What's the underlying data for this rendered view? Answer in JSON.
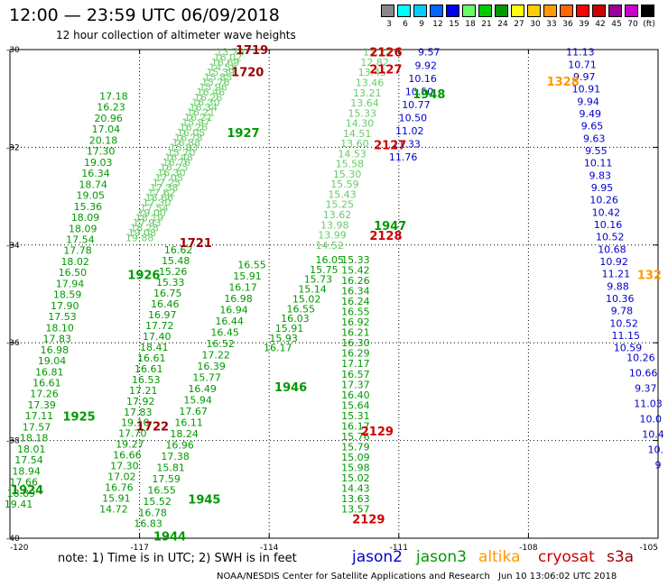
{
  "header": {
    "title": "12:00 — 23:59 UTC 06/09/2018",
    "subtitle": "12 hour collection of altimeter wave heights"
  },
  "colorbar": {
    "labels": [
      "3",
      "6",
      "9",
      "12",
      "15",
      "18",
      "21",
      "24",
      "27",
      "30",
      "33",
      "36",
      "39",
      "42",
      "45",
      "70",
      "(ft)"
    ],
    "colors": [
      "#888888",
      "#00ffff",
      "#00ccff",
      "#0066ff",
      "#0000ee",
      "#66ff66",
      "#00cc00",
      "#009900",
      "#ffff00",
      "#ffcc00",
      "#ff9900",
      "#ff6600",
      "#ff0000",
      "#cc0000",
      "#990099",
      "#cc00cc",
      "#000000"
    ]
  },
  "axes": {
    "lat_labels": [
      "-30",
      "-32",
      "-34",
      "-36",
      "-38",
      "-40"
    ],
    "lon_labels": [
      "-120",
      "-117",
      "-114",
      "-111",
      "-108",
      "-105"
    ]
  },
  "colors": {
    "jason2": "#0000cc",
    "jason3": "#009900",
    "jason3_light": "#66cc66",
    "altika": "#ff9900",
    "cryosat": "#cc0000",
    "s3a": "#990000",
    "green_mid": "#33aa33",
    "yellow": "#ffff44"
  },
  "footer": {
    "note": "note:  1) Time is in UTC;  2) SWH is in feet",
    "satellites": [
      "jason2",
      "jason3",
      "altika",
      "cryosat",
      "s3a"
    ],
    "credit": "NOAA/NESDIS Center for Satellite Applications and Research",
    "date": "Jun 10 13:06:02 UTC 2018"
  },
  "tracks": [
    {
      "sat": "jason3_light",
      "lon0": -114.9,
      "lat0": -30.05,
      "lon1": -117.0,
      "lat1": -33.85,
      "values": [
        "13.78",
        "16.02",
        "16.69",
        "14.55",
        "15.39",
        "15.85",
        "15.76",
        "15.96",
        "16.46",
        "16.26",
        "16.30",
        "16.34",
        "16.21",
        "16.21",
        "15.97",
        "16.26",
        "16.05",
        "16.78",
        "16.88",
        "15.83",
        "15.70",
        "16.48",
        "16.76",
        "16.25",
        "16.30",
        "17.05",
        "17.25",
        "17.38",
        "17.62",
        "18.66",
        "17.30",
        "17.54",
        "19.00",
        "18.19",
        "17.93",
        "18.28",
        "19.08",
        "19.88"
      ]
    },
    {
      "sat": "jason3",
      "lon0": -117.6,
      "lat0": -30.95,
      "lon1": -119.8,
      "lat1": -39.3,
      "values": [
        "17.18",
        "16.23",
        "20.96",
        "17.04",
        "20.18",
        "17.30",
        "19.03",
        "16.34",
        "18.74",
        "19.05",
        "15.36",
        "18.09",
        "18.09",
        "17.54",
        "17.78",
        "18.02",
        "16.50",
        "17.94",
        "18.59",
        "17.90",
        "17.53",
        "18.10",
        "17.83",
        "16.98",
        "19.04",
        "16.81",
        "16.61",
        "17.26",
        "17.39",
        "17.11",
        "17.57",
        "18.18",
        "18.01",
        "17.54",
        "18.94",
        "17.66",
        "18.89",
        "19.41"
      ]
    },
    {
      "sat": "jason3",
      "lon0": -116.1,
      "lat0": -34.1,
      "lon1": -117.6,
      "lat1": -39.4,
      "values": [
        "16.62",
        "15.48",
        "15.26",
        "15.33",
        "16.75",
        "16.46",
        "16.97",
        "17.72",
        "17.40",
        "18.41",
        "16.61",
        "16.61",
        "16.53",
        "17.21",
        "17.92",
        "17.83",
        "19.10",
        "17.70",
        "19.27",
        "16.66",
        "17.30",
        "17.02",
        "16.76",
        "15.91",
        "14.72"
      ]
    },
    {
      "sat": "jason3",
      "lon0": -114.4,
      "lat0": -34.4,
      "lon1": -116.8,
      "lat1": -39.7,
      "values": [
        "16.55",
        "15.91",
        "16.17",
        "16.98",
        "16.94",
        "16.44",
        "16.45",
        "16.52",
        "17.22",
        "16.39",
        "15.77",
        "16.49",
        "15.94",
        "17.67",
        "16.11",
        "18.24",
        "16.96",
        "17.38",
        "15.81",
        "17.59",
        "16.55",
        "15.52",
        "16.78",
        "16.83"
      ]
    },
    {
      "sat": "jason3",
      "lon0": -112.6,
      "lat0": -34.3,
      "lon1": -113.8,
      "lat1": -36.1,
      "values": [
        "16.05",
        "15.75",
        "15.73",
        "15.14",
        "15.02",
        "16.55",
        "16.03",
        "15.91",
        "15.93",
        "16.17"
      ]
    },
    {
      "sat": "jason3",
      "lon0": -112.0,
      "lat0": -34.3,
      "lon1": -112.0,
      "lat1": -39.4,
      "values": [
        "15.33",
        "15.42",
        "16.26",
        "16.34",
        "16.24",
        "16.55",
        "16.92",
        "16.21",
        "16.30",
        "16.29",
        "17.17",
        "16.57",
        "17.37",
        "16.40",
        "15.64",
        "15.31",
        "16.17",
        "15.76",
        "15.79",
        "15.09",
        "15.98",
        "15.02",
        "14.43",
        "13.63",
        "13.57"
      ]
    },
    {
      "sat": "jason3_light",
      "lon0": -111.5,
      "lat0": -30.05,
      "lon1": -112.6,
      "lat1": -34.0,
      "values": [
        "13.22",
        "12.82",
        "13.45",
        "13.46",
        "13.21",
        "13.64",
        "15.33",
        "14.30",
        "14.51",
        "13.60",
        "14.53",
        "15.58",
        "15.30",
        "15.59",
        "15.43",
        "15.25",
        "13.62",
        "13.98",
        "13.99",
        "14.52"
      ]
    },
    {
      "sat": "jason2",
      "lon0": -110.3,
      "lat0": -30.05,
      "lon1": -110.9,
      "lat1": -32.2,
      "values": [
        "9.57",
        "9.92",
        "10.16",
        "10.50",
        "10.77",
        "10.50",
        "11.02",
        "11.33",
        "11.76"
      ]
    },
    {
      "sat": "jason2",
      "lon0": -106.8,
      "lat0": -30.05,
      "lon1": -105.7,
      "lat1": -36.1,
      "values": [
        "11.13",
        "10.71",
        "9.97",
        "10.91",
        "9.94",
        "9.49",
        "9.65",
        "9.63",
        "9.55",
        "10.11",
        "9.83",
        "9.95",
        "10.26",
        "10.42",
        "10.16",
        "10.52",
        "10.68",
        "10.92",
        "11.21",
        "9.88",
        "10.36",
        "9.78",
        "10.52",
        "11.15",
        "10.59"
      ]
    },
    {
      "sat": "jason2",
      "lon0": -105.4,
      "lat0": -36.3,
      "lon1": -105.0,
      "lat1": -38.5,
      "values": [
        "10.26",
        "10.66",
        "9.37",
        "11.03",
        "10.0",
        "10.4",
        "10.",
        "9"
      ]
    }
  ],
  "time_labels": [
    {
      "sat": "s3a",
      "lon": -114.4,
      "lat": -30.0,
      "text": "1719"
    },
    {
      "sat": "s3a",
      "lon": -114.5,
      "lat": -30.45,
      "text": "1720"
    },
    {
      "sat": "jason3",
      "lon": -114.6,
      "lat": -31.7,
      "text": "1927"
    },
    {
      "sat": "s3a",
      "lon": -115.7,
      "lat": -33.95,
      "text": "1721"
    },
    {
      "sat": "jason3",
      "lon": -116.9,
      "lat": -34.6,
      "text": "1926"
    },
    {
      "sat": "jason3",
      "lon": -118.4,
      "lat": -37.5,
      "text": "1925"
    },
    {
      "sat": "s3a",
      "lon": -116.7,
      "lat": -37.7,
      "text": "1722"
    },
    {
      "sat": "jason3",
      "lon": -119.6,
      "lat": -39.0,
      "text": "1924"
    },
    {
      "sat": "jason3",
      "lon": -115.5,
      "lat": -39.2,
      "text": "1945"
    },
    {
      "sat": "jason3",
      "lon": -116.3,
      "lat": -39.95,
      "text": "1944"
    },
    {
      "sat": "jason3",
      "lon": -113.5,
      "lat": -36.9,
      "text": "1946"
    },
    {
      "sat": "jason3",
      "lon": -111.2,
      "lat": -33.6,
      "text": "1947"
    },
    {
      "sat": "jason3",
      "lon": -110.3,
      "lat": -30.9,
      "text": "1948"
    },
    {
      "sat": "cryosat",
      "lon": -111.3,
      "lat": -30.05,
      "text": "2126"
    },
    {
      "sat": "cryosat",
      "lon": -111.3,
      "lat": -30.4,
      "text": "2127"
    },
    {
      "sat": "cryosat",
      "lon": -111.2,
      "lat": -31.95,
      "text": "2127"
    },
    {
      "sat": "cryosat",
      "lon": -111.3,
      "lat": -33.8,
      "text": "2128"
    },
    {
      "sat": "cryosat",
      "lon": -111.5,
      "lat": -37.8,
      "text": "2129"
    },
    {
      "sat": "cryosat",
      "lon": -111.7,
      "lat": -39.6,
      "text": "2129"
    },
    {
      "sat": "altika",
      "lon": -107.2,
      "lat": -30.65,
      "text": "1328"
    },
    {
      "sat": "altika",
      "lon": -105.2,
      "lat": -34.6,
      "text": "132"
    }
  ]
}
